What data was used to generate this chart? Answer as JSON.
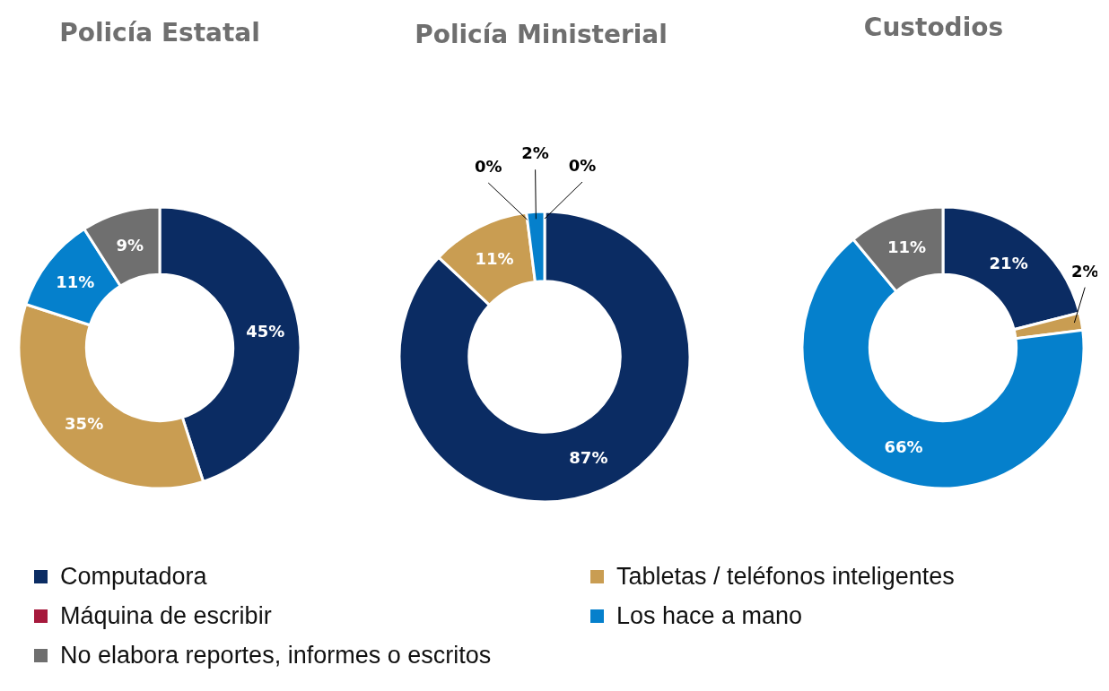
{
  "chart_data": {
    "type": "donut",
    "categories": [
      "Computadora",
      "Tabletas / teléfonos inteligentes",
      "Máquina de escribir",
      "Los hace a mano",
      "No elabora reportes, informes o escritos"
    ],
    "colors": [
      "#0b2c63",
      "#c99d52",
      "#a6193c",
      "#0580cc",
      "#6f6f6f"
    ],
    "legend": "bottom",
    "series": [
      {
        "name": "Policía Estatal",
        "values": [
          45,
          35,
          0,
          11,
          9
        ],
        "value_labels": [
          "45%",
          "35%",
          null,
          "11%",
          "9%"
        ]
      },
      {
        "name": "Policía Ministerial",
        "values": [
          87,
          11,
          0,
          2,
          0
        ],
        "value_labels": [
          "87%",
          "11%",
          "0%",
          "2%",
          "0%"
        ]
      },
      {
        "name": "Custodios",
        "values": [
          21,
          2,
          0,
          66,
          11
        ],
        "value_labels": [
          "21%",
          "2%",
          null,
          "66%",
          "11%"
        ]
      }
    ]
  }
}
